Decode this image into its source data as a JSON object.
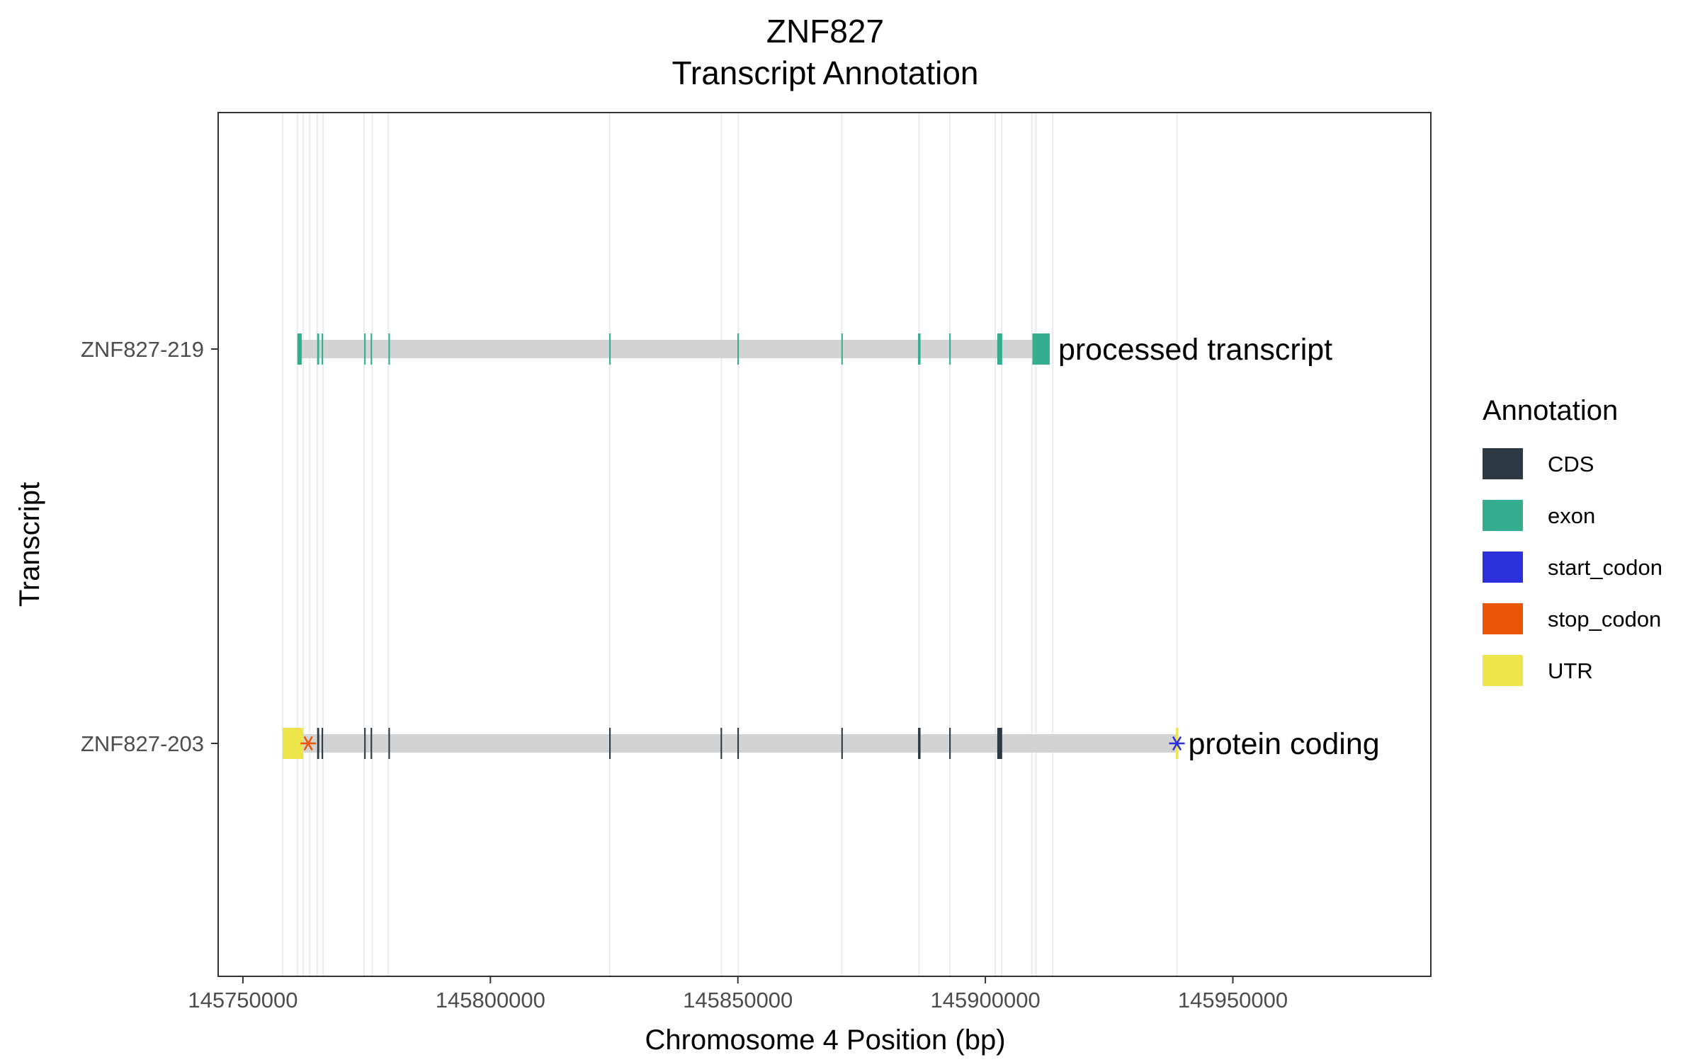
{
  "chart_data": {
    "type": "gene-track",
    "title": [
      "ZNF827",
      "Transcript Annotation"
    ],
    "xlabel": "Chromosome 4 Position (bp)",
    "ylabel": "Transcript",
    "xlim": [
      145745000,
      145990000
    ],
    "x_ticks": [
      "145750000",
      "145800000",
      "145850000",
      "145900000",
      "145950000"
    ],
    "x_tick_values": [
      145750000,
      145800000,
      145850000,
      145900000,
      145950000
    ],
    "grid": "vertical lines at feature boundaries",
    "legend": {
      "title": "Annotation",
      "placement": "right",
      "items": [
        {
          "label": "CDS",
          "color": "#2d3a43"
        },
        {
          "label": "exon",
          "color": "#35ae90"
        },
        {
          "label": "start_codon",
          "color": "#2b2fdc"
        },
        {
          "label": "stop_codon",
          "color": "#ea5506"
        },
        {
          "label": "UTR",
          "color": "#ede44a"
        }
      ]
    },
    "transcripts": [
      {
        "name": "ZNF827-219",
        "biotype": "processed transcript",
        "start": 145761000,
        "end": 145913000,
        "features": [
          {
            "type": "exon",
            "start": 145761000,
            "end": 145761900
          },
          {
            "type": "exon",
            "start": 145765000,
            "end": 145765400
          },
          {
            "type": "exon",
            "start": 145765900,
            "end": 145766200
          },
          {
            "type": "exon",
            "start": 145774500,
            "end": 145774800
          },
          {
            "type": "exon",
            "start": 145775800,
            "end": 145776100
          },
          {
            "type": "exon",
            "start": 145779400,
            "end": 145779700
          },
          {
            "type": "exon",
            "start": 145824000,
            "end": 145824300
          },
          {
            "type": "exon",
            "start": 145849900,
            "end": 145850200
          },
          {
            "type": "exon",
            "start": 145870900,
            "end": 145871200
          },
          {
            "type": "exon",
            "start": 145886400,
            "end": 145886900
          },
          {
            "type": "exon",
            "start": 145892700,
            "end": 145893000
          },
          {
            "type": "exon",
            "start": 145902400,
            "end": 145903400
          },
          {
            "type": "exon",
            "start": 145909500,
            "end": 145913000
          }
        ]
      },
      {
        "name": "ZNF827-203",
        "biotype": "protein coding",
        "start": 145758000,
        "end": 145939000,
        "features": [
          {
            "type": "UTR",
            "start": 145758000,
            "end": 145762200
          },
          {
            "type": "CDS",
            "start": 145765000,
            "end": 145765400
          },
          {
            "type": "CDS",
            "start": 145765900,
            "end": 145766200
          },
          {
            "type": "CDS",
            "start": 145774500,
            "end": 145774800
          },
          {
            "type": "CDS",
            "start": 145775800,
            "end": 145776100
          },
          {
            "type": "CDS",
            "start": 145779400,
            "end": 145779700
          },
          {
            "type": "CDS",
            "start": 145824000,
            "end": 145824300
          },
          {
            "type": "CDS",
            "start": 145846500,
            "end": 145846800
          },
          {
            "type": "CDS",
            "start": 145849900,
            "end": 145850200
          },
          {
            "type": "CDS",
            "start": 145870900,
            "end": 145871200
          },
          {
            "type": "CDS",
            "start": 145886400,
            "end": 145886900
          },
          {
            "type": "CDS",
            "start": 145892700,
            "end": 145893000
          },
          {
            "type": "CDS",
            "start": 145902400,
            "end": 145903400
          },
          {
            "type": "UTR",
            "start": 145938500,
            "end": 145939000
          },
          {
            "type": "stop_codon",
            "position": 145763200
          },
          {
            "type": "start_codon",
            "position": 145938700
          }
        ]
      }
    ],
    "grid_x": [
      145758000,
      145761000,
      145762200,
      145763500,
      145765000,
      145766200,
      145774500,
      145776100,
      145779400,
      145824100,
      145846700,
      145850100,
      145871000,
      145886600,
      145892800,
      145902000,
      145903300,
      145909400,
      145910200,
      145913600,
      145938700
    ]
  }
}
